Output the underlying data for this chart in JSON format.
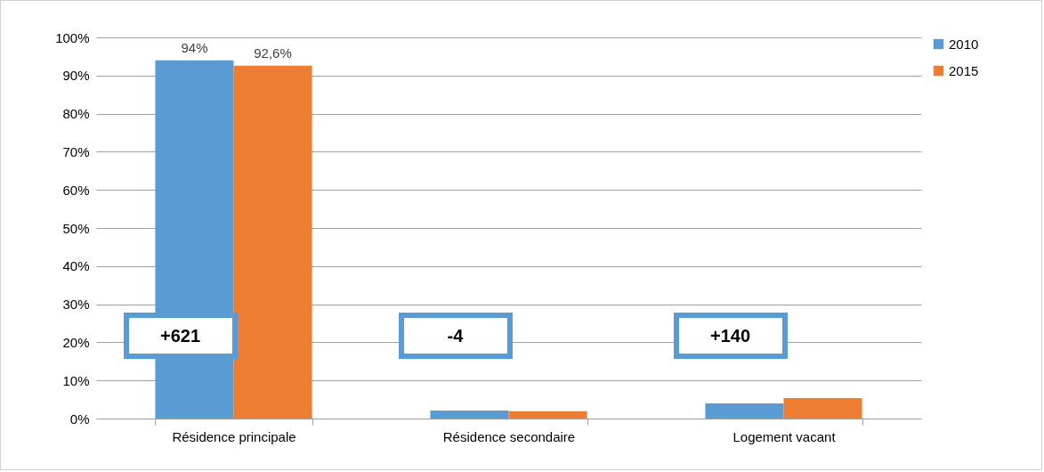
{
  "chart_data": {
    "type": "bar",
    "categories": [
      "Résidence principale",
      "Résidence secondaire",
      "Logement vacant"
    ],
    "series": [
      {
        "name": "2010",
        "color": "#5b9bd5",
        "values": [
          94,
          2.1,
          4.0
        ],
        "value_labels": [
          "94%",
          null,
          null
        ]
      },
      {
        "name": "2015",
        "color": "#ed7d31",
        "values": [
          92.6,
          1.9,
          5.4
        ],
        "value_labels": [
          "92,6%",
          null,
          null
        ]
      }
    ],
    "ylim": [
      0,
      100
    ],
    "yticks": [
      {
        "value": 0,
        "label": "0%"
      },
      {
        "value": 10,
        "label": "10%"
      },
      {
        "value": 20,
        "label": "20%"
      },
      {
        "value": 30,
        "label": "30%"
      },
      {
        "value": 40,
        "label": "40%"
      },
      {
        "value": 50,
        "label": "50%"
      },
      {
        "value": 60,
        "label": "60%"
      },
      {
        "value": 70,
        "label": "70%"
      },
      {
        "value": 80,
        "label": "80%"
      },
      {
        "value": 90,
        "label": "90%"
      },
      {
        "value": 100,
        "label": "100%"
      }
    ],
    "annotations": [
      "+621",
      "-4",
      "+140"
    ],
    "grid": "y",
    "legend": "right"
  }
}
